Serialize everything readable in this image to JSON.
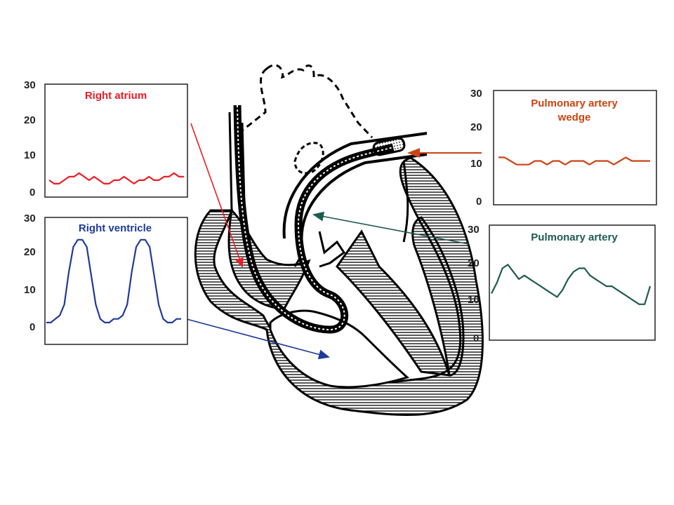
{
  "colors": {
    "right_atrium": "#ee1c24",
    "right_ventricle": "#1f3a9a",
    "pa_wedge": "#cc4411",
    "pulmonary_artery": "#1e5b4f",
    "heart_outline": "#000000"
  },
  "panels": {
    "right_atrium": {
      "title": "Right atrium",
      "ticks": [
        "30",
        "20",
        "10",
        "0"
      ]
    },
    "right_ventricle": {
      "title": "Right ventricle",
      "ticks": [
        "30",
        "20",
        "10",
        "0"
      ]
    },
    "pa_wedge": {
      "title_line1": "Pulmonary artery",
      "title_line2": "wedge",
      "ticks": [
        "30",
        "20",
        "10",
        "0"
      ]
    },
    "pulmonary_artery": {
      "title": "Pulmonary artery",
      "ticks": [
        "30",
        "20",
        "10",
        "0"
      ]
    }
  },
  "chart_data": [
    {
      "type": "line",
      "title": "Right atrium",
      "ylim": [
        0,
        30
      ],
      "series": [
        {
          "values": [
            3,
            2,
            2,
            3,
            4,
            4,
            5,
            4,
            3,
            4,
            3,
            2,
            2,
            3,
            3,
            4,
            3,
            2,
            3,
            3,
            4,
            3,
            3,
            4,
            4,
            5,
            4,
            4
          ]
        }
      ]
    },
    {
      "type": "line",
      "title": "Right ventricle",
      "ylim": [
        0,
        30
      ],
      "series": [
        {
          "values": [
            1,
            1,
            2,
            3,
            6,
            15,
            22,
            24,
            24,
            22,
            14,
            6,
            2,
            1,
            1,
            2,
            2,
            3,
            6,
            15,
            22,
            24,
            24,
            22,
            14,
            6,
            2,
            1,
            1,
            2,
            2
          ]
        }
      ]
    },
    {
      "type": "line",
      "title": "Pulmonary artery wedge",
      "ylim": [
        0,
        30
      ],
      "series": [
        {
          "values": [
            12,
            12,
            11,
            10,
            10,
            10,
            11,
            11,
            10,
            11,
            11,
            10,
            11,
            11,
            11,
            10,
            11,
            11,
            11,
            10,
            11,
            12,
            11,
            11,
            11,
            11
          ]
        }
      ]
    },
    {
      "type": "line",
      "title": "Pulmonary artery",
      "ylim": [
        0,
        30
      ],
      "series": [
        {
          "values": [
            12,
            15,
            19,
            20,
            18,
            16,
            17,
            16,
            15,
            14,
            13,
            12,
            11,
            13,
            16,
            18,
            19,
            19,
            17,
            16,
            15,
            14,
            14,
            13,
            12,
            11,
            10,
            9,
            9,
            14
          ]
        }
      ]
    }
  ]
}
